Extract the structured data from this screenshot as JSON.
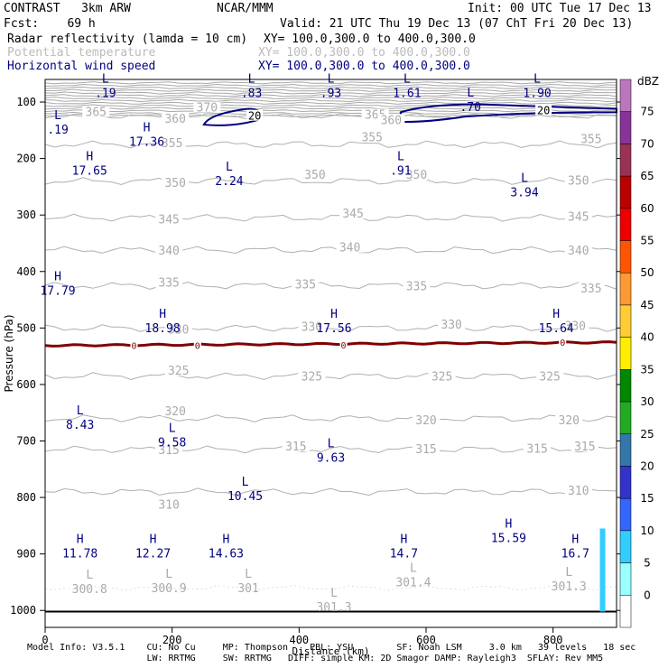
{
  "header": {
    "model": "CONTRAST   3km ARW",
    "center": "NCAR/MMM",
    "init": "Init: 00 UTC Tue 17 Dec 13",
    "fcst": "Fcst:    69 h",
    "valid": "Valid: 21 UTC Thu 19 Dec 13 (07 ChT Fri 20 Dec 13)",
    "line1_field": "Radar reflectivity (lamda = 10 cm)",
    "line1_xy": "XY= 100.0,300.0 to 400.0,300.0",
    "line2_field": "Potential temperature",
    "line2_xy": "XY= 100.0,300.0 to 400.0,300.0",
    "line3_field": "Horizontal wind speed",
    "line3_xy": "XY= 100.0,300.0 to 400.0,300.0"
  },
  "footer": {
    "line1": "Model Info: V3.5.1    CU: No Cu     MP: Thompson    PBL: YSU        SF: Noah LSM     3.0 km   39 levels   18 sec",
    "line2": "                      LW: RRTMG     SW: RRTMG   DIFF: simple KM: 2D Smagor DAMP: Rayleigh3  SFLAY: Rev MM5"
  },
  "chart_data": {
    "type": "contour-cross-section",
    "xlabel": "Distance (km)",
    "ylabel": "Pressure (hPa)",
    "xlim": [
      0,
      900
    ],
    "ylim": [
      1030,
      60
    ],
    "x_ticks": [
      0,
      200,
      400,
      600,
      800
    ],
    "y_ticks": [
      100,
      200,
      300,
      400,
      500,
      600,
      700,
      800,
      900,
      1000
    ],
    "colorbar": {
      "title": "dBZ",
      "levels": [
        0,
        5,
        10,
        15,
        20,
        25,
        30,
        35,
        40,
        45,
        50,
        55,
        60,
        65,
        70,
        75
      ],
      "colors": [
        "#ffffff",
        "#99ffff",
        "#33ccff",
        "#3366ff",
        "#3333cc",
        "#3377aa",
        "#22aa22",
        "#008800",
        "#ffee00",
        "#ffcc33",
        "#ff9933",
        "#ff5500",
        "#ee0000",
        "#bb0000",
        "#993355",
        "#883399",
        "#bb77bb"
      ]
    },
    "theta_labels": [
      {
        "text": "370",
        "x": 255,
        "p": 112
      },
      {
        "text": "365",
        "x": 80,
        "p": 120
      },
      {
        "text": "360",
        "x": 205,
        "p": 132
      },
      {
        "text": "365",
        "x": 520,
        "p": 125
      },
      {
        "text": "360",
        "x": 545,
        "p": 134
      },
      {
        "text": "355",
        "x": 200,
        "p": 175
      },
      {
        "text": "355",
        "x": 515,
        "p": 165
      },
      {
        "text": "355",
        "x": 860,
        "p": 168
      },
      {
        "text": "350",
        "x": 205,
        "p": 245
      },
      {
        "text": "350",
        "x": 425,
        "p": 231
      },
      {
        "text": "350",
        "x": 585,
        "p": 231
      },
      {
        "text": "350",
        "x": 840,
        "p": 241
      },
      {
        "text": "345",
        "x": 195,
        "p": 310
      },
      {
        "text": "345",
        "x": 485,
        "p": 300
      },
      {
        "text": "345",
        "x": 840,
        "p": 305
      },
      {
        "text": "340",
        "x": 195,
        "p": 365
      },
      {
        "text": "340",
        "x": 480,
        "p": 360
      },
      {
        "text": "340",
        "x": 840,
        "p": 365
      },
      {
        "text": "335",
        "x": 195,
        "p": 422
      },
      {
        "text": "335",
        "x": 410,
        "p": 425
      },
      {
        "text": "335",
        "x": 585,
        "p": 428
      },
      {
        "text": "335",
        "x": 860,
        "p": 432
      },
      {
        "text": "330",
        "x": 210,
        "p": 505
      },
      {
        "text": "330",
        "x": 420,
        "p": 500
      },
      {
        "text": "330",
        "x": 640,
        "p": 496
      },
      {
        "text": "330",
        "x": 835,
        "p": 499
      },
      {
        "text": "325",
        "x": 210,
        "p": 578
      },
      {
        "text": "325",
        "x": 420,
        "p": 588
      },
      {
        "text": "325",
        "x": 625,
        "p": 588
      },
      {
        "text": "325",
        "x": 795,
        "p": 588
      },
      {
        "text": "320",
        "x": 205,
        "p": 650
      },
      {
        "text": "320",
        "x": 600,
        "p": 666
      },
      {
        "text": "320",
        "x": 825,
        "p": 666
      },
      {
        "text": "315",
        "x": 195,
        "p": 718
      },
      {
        "text": "315",
        "x": 395,
        "p": 712
      },
      {
        "text": "315",
        "x": 600,
        "p": 717
      },
      {
        "text": "315",
        "x": 775,
        "p": 716
      },
      {
        "text": "315",
        "x": 850,
        "p": 712
      },
      {
        "text": "310",
        "x": 195,
        "p": 815
      },
      {
        "text": "310",
        "x": 840,
        "p": 790
      }
    ],
    "theta_extremes": [
      {
        "kind": "L",
        "value": "300.8",
        "x": 70,
        "p": 960
      },
      {
        "kind": "L",
        "value": "300.9",
        "x": 195,
        "p": 958
      },
      {
        "kind": "L",
        "value": "301",
        "x": 320,
        "p": 958
      },
      {
        "kind": "L",
        "value": "301.3",
        "x": 455,
        "p": 992
      },
      {
        "kind": "L",
        "value": "301.4",
        "x": 580,
        "p": 948
      },
      {
        "kind": "L",
        "value": "301.3",
        "x": 825,
        "p": 955
      }
    ],
    "wind_extremes": [
      {
        "kind": "L",
        "value": ".19",
        "x": 95,
        "p": 78
      },
      {
        "kind": "L",
        "value": ".83",
        "x": 325,
        "p": 78
      },
      {
        "kind": "L",
        "value": ".93",
        "x": 450,
        "p": 78
      },
      {
        "kind": "L",
        "value": "1.61",
        "x": 570,
        "p": 78
      },
      {
        "kind": "L",
        "value": ".70",
        "x": 670,
        "p": 103
      },
      {
        "kind": "L",
        "value": "1.90",
        "x": 775,
        "p": 78
      },
      {
        "kind": "L",
        "value": ".19",
        "x": 20,
        "p": 143
      },
      {
        "kind": "H",
        "value": "17.36",
        "x": 160,
        "p": 165
      },
      {
        "kind": "H",
        "value": "17.65",
        "x": 70,
        "p": 216
      },
      {
        "kind": "L",
        "value": "2.24",
        "x": 290,
        "p": 234
      },
      {
        "kind": "L",
        "value": ".91",
        "x": 560,
        "p": 216
      },
      {
        "kind": "L",
        "value": "3.94",
        "x": 755,
        "p": 254
      },
      {
        "kind": "H",
        "value": "17.79",
        "x": 20,
        "p": 428
      },
      {
        "kind": "H",
        "value": "18.98",
        "x": 185,
        "p": 495
      },
      {
        "kind": "H",
        "value": "17.56",
        "x": 455,
        "p": 495
      },
      {
        "kind": "H",
        "value": "15.64",
        "x": 805,
        "p": 495
      },
      {
        "kind": "L",
        "value": "8.43",
        "x": 55,
        "p": 666
      },
      {
        "kind": "L",
        "value": "9.58",
        "x": 200,
        "p": 697
      },
      {
        "kind": "L",
        "value": "9.63",
        "x": 450,
        "p": 724
      },
      {
        "kind": "L",
        "value": "10.45",
        "x": 315,
        "p": 792
      },
      {
        "kind": "H",
        "value": "11.78",
        "x": 55,
        "p": 893
      },
      {
        "kind": "H",
        "value": "12.27",
        "x": 170,
        "p": 893
      },
      {
        "kind": "H",
        "value": "14.63",
        "x": 285,
        "p": 893
      },
      {
        "kind": "H",
        "value": "14.7",
        "x": 565,
        "p": 893
      },
      {
        "kind": "H",
        "value": "15.59",
        "x": 730,
        "p": 866
      },
      {
        "kind": "H",
        "value": "16.7",
        "x": 835,
        "p": 893
      }
    ],
    "wind_contours": [
      {
        "label": "20",
        "x": 785,
        "p": 115
      },
      {
        "label": "20",
        "x": 330,
        "p": 125
      }
    ],
    "zero_line": {
      "color": "#800000",
      "labels": [
        "0",
        "0",
        "0",
        "0"
      ],
      "label_x": [
        140,
        240,
        470,
        815
      ],
      "label_p": [
        531,
        531,
        530,
        525
      ]
    },
    "surface_pressure_hPa": 1002,
    "reflectivity_echo": {
      "x": 878,
      "p_top": 855,
      "p_bottom": 1002,
      "dbz": 10
    }
  }
}
